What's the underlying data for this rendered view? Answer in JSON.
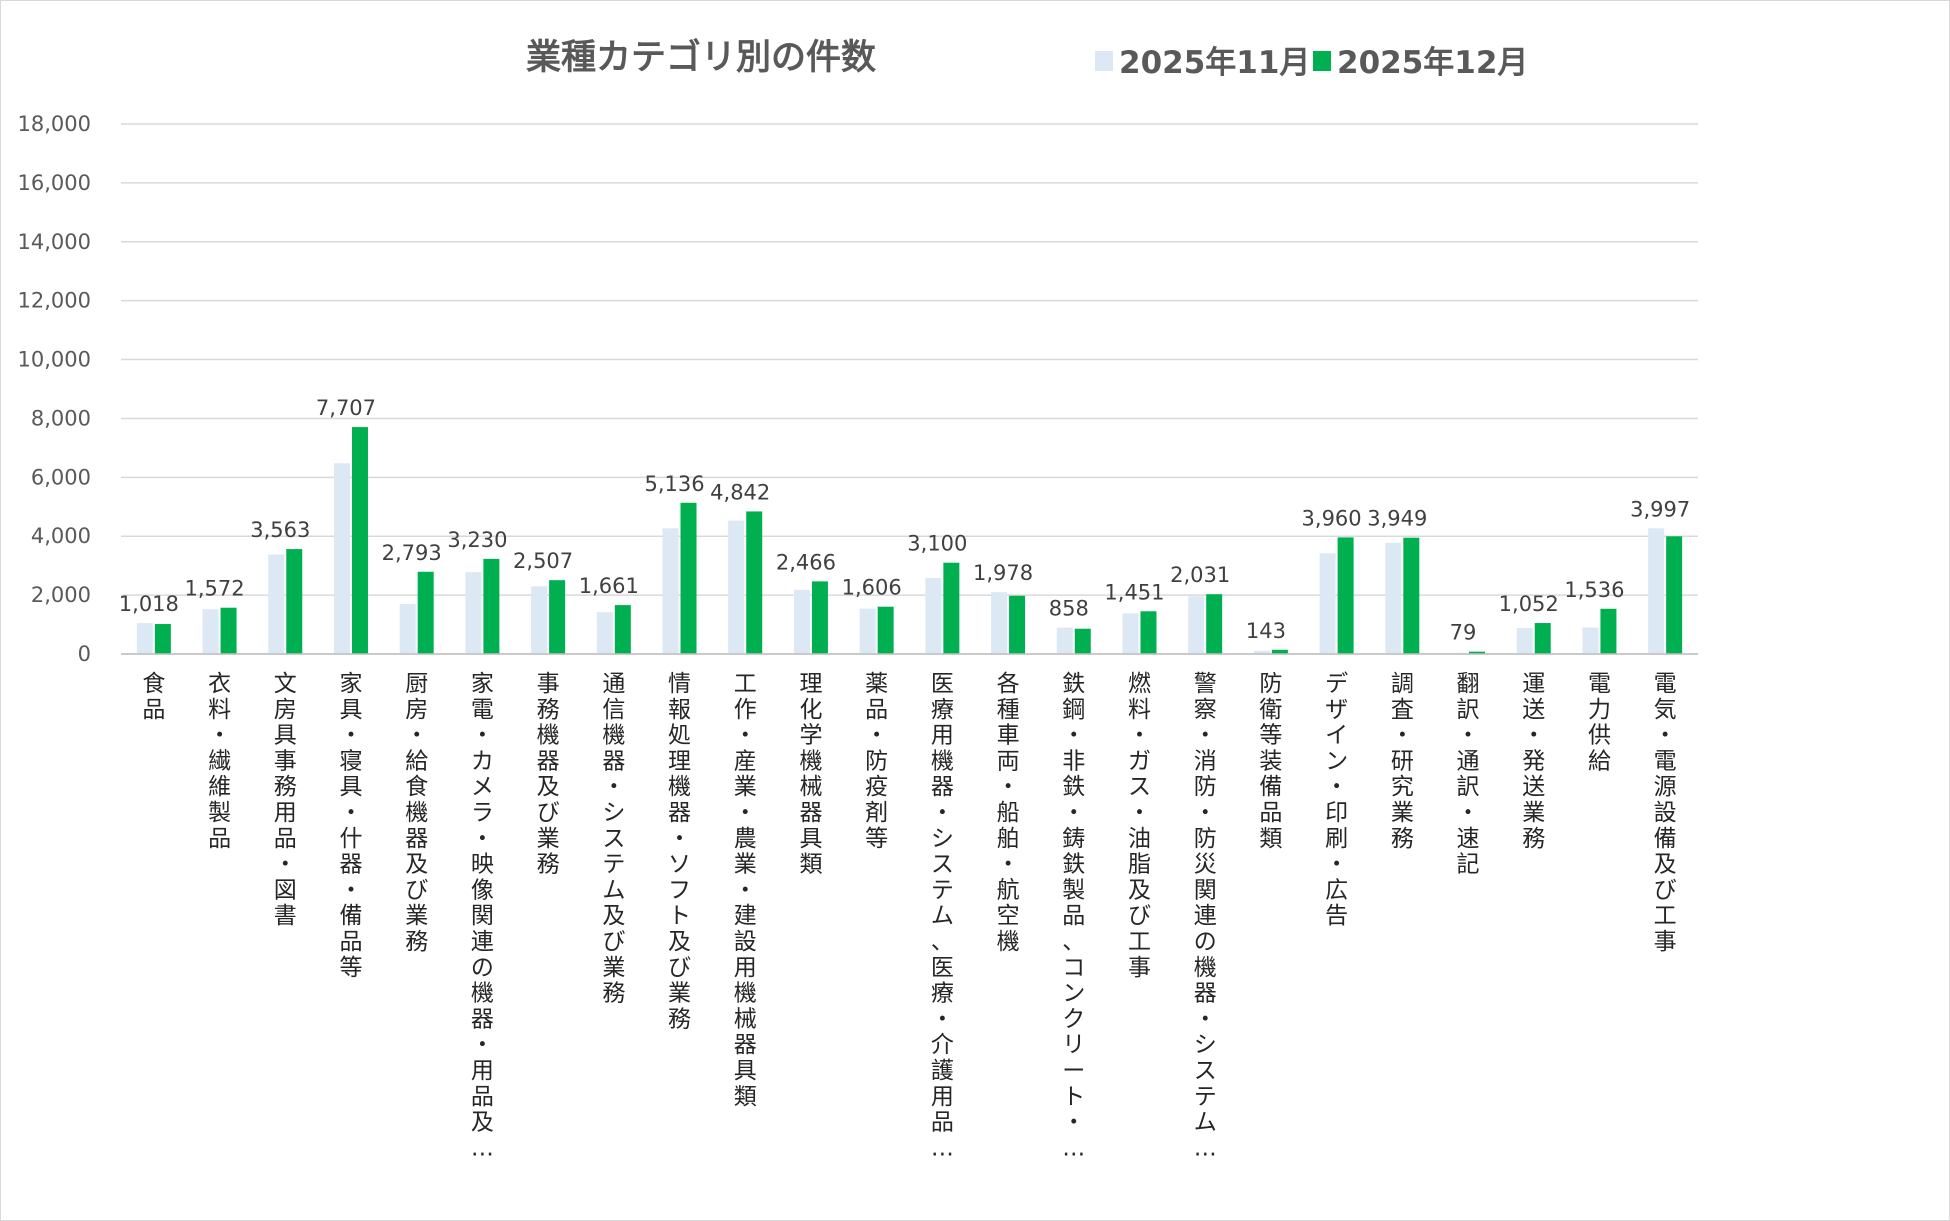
{
  "chart_data": {
    "type": "bar",
    "title": "業種カテゴリ別の件数",
    "xlabel": "",
    "ylabel": "",
    "ylim": [
      0,
      18000
    ],
    "ytick_step": 2000,
    "yticks": [
      "0",
      "2,000",
      "4,000",
      "6,000",
      "8,000",
      "10,000",
      "12,000",
      "14,000",
      "16,000",
      "18,000"
    ],
    "grid": true,
    "legend_position": "top-right",
    "categories": [
      "食品",
      "衣料・繊維製品",
      "文房具事務用品・図書",
      "家具・寝具・什器・備品等",
      "厨房・給食機器及び業務",
      "家電・カメラ・映像関連の機器・用品及…",
      "事務機器及び業務",
      "通信機器・システム及び業務",
      "情報処理機器・ソフト及び業務",
      "工作・産業・農業・建設用機械器具類",
      "理化学機械器具類",
      "薬品・防疫剤等",
      "医療用機器・システム、医療・介護用品…",
      "各種車両・船舶・航空機",
      "鉄鋼・非鉄・鋳鉄製品、コンクリート・…",
      "燃料・ガス・油脂及び工事",
      "警察・消防・防災関連の機器・システム…",
      "防衛等装備品類",
      "デザイン・印刷・広告",
      "調査・研究業務",
      "翻訳・通訳・速記",
      "運送・発送業務",
      "電力供給",
      "電気・電源設備及び工事"
    ],
    "series": [
      {
        "name": "2025年11月",
        "color": "#dde8f5",
        "show_labels": false,
        "values": [
          1050,
          1520,
          3380,
          6480,
          1700,
          2780,
          2300,
          1420,
          4270,
          4530,
          2180,
          1540,
          2580,
          2100,
          900,
          1380,
          1960,
          110,
          3420,
          3780,
          40,
          880,
          900,
          4270
        ]
      },
      {
        "name": "2025年12月",
        "color": "#00b050",
        "show_labels": true,
        "values": [
          1018,
          1572,
          3563,
          7707,
          2793,
          3230,
          2507,
          1661,
          5136,
          4842,
          2466,
          1606,
          3100,
          1978,
          858,
          1451,
          2031,
          143,
          3960,
          3949,
          79,
          1052,
          1536,
          3997
        ],
        "labels": [
          "1,018",
          "1,572",
          "3,563",
          "7,707",
          "2,793",
          "3,230",
          "2,507",
          "1,661",
          "5,136",
          "4,842",
          "2,466",
          "1,606",
          "3,100",
          "1,978",
          "858",
          "1,451",
          "2,031",
          "143",
          "3,960",
          "3,949",
          "79",
          "1,052",
          "1,536",
          "3,997"
        ]
      }
    ]
  }
}
